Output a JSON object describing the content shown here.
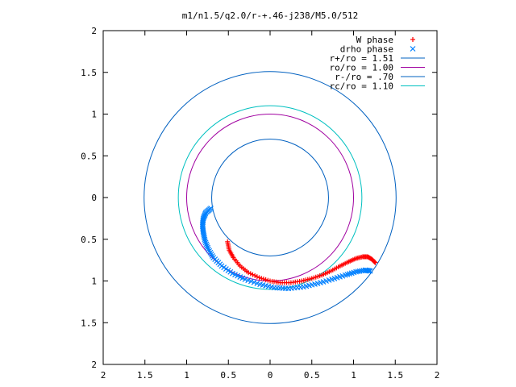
{
  "chart_data": {
    "type": "scatter",
    "title": "m1/n1.5/q2.0/r-+.46-j238/M5.0/512",
    "xlabel": "",
    "ylabel": "",
    "xlim": [
      -2,
      2
    ],
    "ylim": [
      -2,
      2
    ],
    "x_tick_labels": [
      "2",
      "1.5",
      "1",
      "0.5",
      "0",
      "0.5",
      "1",
      "1.5",
      "2"
    ],
    "y_tick_labels": [
      "2",
      "1.5",
      "1",
      "0.5",
      "0",
      "0.5",
      "1",
      "1.5",
      "2"
    ],
    "grid": false,
    "legend_position": "top-right",
    "series": [
      {
        "name": "W phase",
        "kind": "points",
        "marker": "plus",
        "color": "#ff0000",
        "points": [
          [
            -0.51,
            -0.53
          ],
          [
            -0.49,
            -0.63
          ],
          [
            -0.44,
            -0.72
          ],
          [
            -0.36,
            -0.82
          ],
          [
            -0.26,
            -0.9
          ],
          [
            -0.13,
            -0.96
          ],
          [
            0.0,
            -1.0
          ],
          [
            0.12,
            -1.02
          ],
          [
            0.25,
            -1.02
          ],
          [
            0.38,
            -1.0
          ],
          [
            0.5,
            -0.97
          ],
          [
            0.62,
            -0.93
          ],
          [
            0.73,
            -0.88
          ],
          [
            0.84,
            -0.82
          ],
          [
            0.94,
            -0.77
          ],
          [
            1.03,
            -0.73
          ],
          [
            1.11,
            -0.71
          ],
          [
            1.17,
            -0.71
          ],
          [
            1.22,
            -0.74
          ],
          [
            1.26,
            -0.78
          ]
        ]
      },
      {
        "name": "drho phase",
        "kind": "points",
        "marker": "cross",
        "color": "#0080ff",
        "points": [
          [
            -0.71,
            -0.13
          ],
          [
            -0.77,
            -0.18
          ],
          [
            -0.8,
            -0.25
          ],
          [
            -0.81,
            -0.33
          ],
          [
            -0.8,
            -0.42
          ],
          [
            -0.78,
            -0.52
          ],
          [
            -0.74,
            -0.62
          ],
          [
            -0.68,
            -0.72
          ],
          [
            -0.58,
            -0.82
          ],
          [
            -0.45,
            -0.91
          ],
          [
            -0.3,
            -0.98
          ],
          [
            -0.12,
            -1.04
          ],
          [
            0.05,
            -1.08
          ],
          [
            0.22,
            -1.09
          ],
          [
            0.4,
            -1.07
          ],
          [
            0.57,
            -1.03
          ],
          [
            0.74,
            -0.98
          ],
          [
            0.9,
            -0.93
          ],
          [
            1.03,
            -0.89
          ],
          [
            1.14,
            -0.87
          ],
          [
            1.2,
            -0.88
          ]
        ]
      },
      {
        "name": "r+/ro = 1.51",
        "kind": "circle",
        "radius": 1.51,
        "color": "#0060c0"
      },
      {
        "name": "ro/ro = 1.00",
        "kind": "circle",
        "radius": 1.0,
        "color": "#a000a0"
      },
      {
        "name": "r-/ro = .70",
        "kind": "circle",
        "radius": 0.7,
        "color": "#0060c0"
      },
      {
        "name": "rc/ro = 1.10",
        "kind": "circle",
        "radius": 1.1,
        "color": "#00c0c0"
      }
    ]
  }
}
